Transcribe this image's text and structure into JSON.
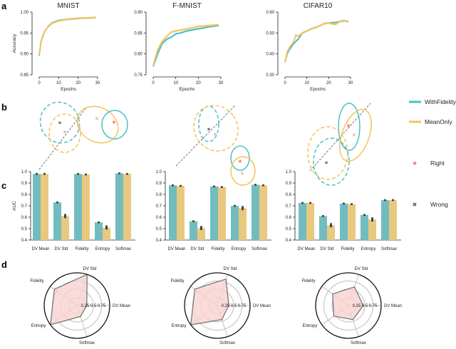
{
  "panel_labels": [
    "a",
    "b",
    "c",
    "d"
  ],
  "legend": {
    "lines": [
      {
        "name": "WithFidelity",
        "color": "#4BBFC8"
      },
      {
        "name": "MeanOnly",
        "color": "#F5C25A"
      }
    ],
    "markers": [
      {
        "name": "Right",
        "color": "#F07A6E",
        "icon": "star-icon"
      },
      {
        "name": "Wrong",
        "color": "#666666",
        "icon": "x-mark-icon"
      }
    ]
  },
  "colors": {
    "with_fidelity_bar": "#72BCC0",
    "mean_only_bar": "#E8C97F",
    "radar_fill": "#F8D3CF",
    "radar_line": "#777777"
  },
  "chart_data": [
    {
      "type": "line",
      "panel": "a",
      "title": "MNIST",
      "xlabel": "Epochs",
      "ylabel": "Accuracy",
      "xlim": [
        0,
        30
      ],
      "ylim": [
        0.85,
        1.0
      ],
      "xticks": [
        "0",
        "10",
        "20",
        "30"
      ],
      "yticks": [
        "0.85",
        "0.90",
        "0.95",
        "1.00"
      ],
      "series": [
        {
          "name": "WithFidelity",
          "x": [
            0,
            1,
            2,
            3,
            5,
            7,
            10,
            15,
            20,
            25,
            29
          ],
          "y": [
            0.896,
            0.93,
            0.945,
            0.955,
            0.968,
            0.975,
            0.98,
            0.983,
            0.985,
            0.986,
            0.987
          ]
        },
        {
          "name": "MeanOnly",
          "x": [
            0,
            1,
            2,
            3,
            5,
            7,
            10,
            15,
            20,
            25,
            29
          ],
          "y": [
            0.898,
            0.931,
            0.946,
            0.955,
            0.967,
            0.974,
            0.979,
            0.983,
            0.985,
            0.986,
            0.987
          ]
        }
      ]
    },
    {
      "type": "line",
      "panel": "a",
      "title": "F-MNIST",
      "xlabel": "Epochs",
      "ylabel": "",
      "xlim": [
        0,
        30
      ],
      "ylim": [
        0.75,
        0.9
      ],
      "xticks": [
        "0",
        "10",
        "20",
        "30"
      ],
      "yticks": [
        "0.75",
        "0.80",
        "0.85",
        "0.90"
      ],
      "series": [
        {
          "name": "WithFidelity",
          "x": [
            0,
            2,
            4,
            6,
            8,
            10,
            12,
            15,
            18,
            20,
            25,
            29
          ],
          "y": [
            0.77,
            0.8,
            0.825,
            0.835,
            0.84,
            0.848,
            0.85,
            0.855,
            0.858,
            0.86,
            0.865,
            0.868
          ]
        },
        {
          "name": "MeanOnly",
          "x": [
            0,
            2,
            4,
            6,
            8,
            10,
            12,
            15,
            18,
            20,
            25,
            29
          ],
          "y": [
            0.772,
            0.81,
            0.83,
            0.842,
            0.852,
            0.855,
            0.857,
            0.86,
            0.863,
            0.866,
            0.868,
            0.87
          ]
        }
      ]
    },
    {
      "type": "line",
      "panel": "a",
      "title": "CIFAR10",
      "xlabel": "Epochs",
      "ylabel": "",
      "xlim": [
        0,
        30
      ],
      "ylim": [
        0.3,
        0.6
      ],
      "xticks": [
        "0",
        "10",
        "20",
        "30"
      ],
      "yticks": [
        "0.30",
        "0.40",
        "0.50",
        "0.60"
      ],
      "series": [
        {
          "name": "WithFidelity",
          "x": [
            0,
            1,
            2,
            4,
            6,
            8,
            10,
            12,
            15,
            18,
            20,
            23,
            25,
            27,
            29
          ],
          "y": [
            0.36,
            0.4,
            0.42,
            0.45,
            0.47,
            0.5,
            0.51,
            0.52,
            0.53,
            0.545,
            0.548,
            0.55,
            0.555,
            0.558,
            0.555
          ]
        },
        {
          "name": "MeanOnly",
          "x": [
            0,
            1,
            2,
            4,
            5,
            6,
            8,
            10,
            12,
            15,
            18,
            20,
            23,
            25,
            27,
            29
          ],
          "y": [
            0.36,
            0.41,
            0.43,
            0.46,
            0.49,
            0.485,
            0.5,
            0.51,
            0.52,
            0.53,
            0.545,
            0.548,
            0.54,
            0.555,
            0.56,
            0.552
          ]
        }
      ]
    },
    {
      "type": "bar",
      "panel": "c",
      "ylabel": "AUC",
      "ylim": [
        0.4,
        1.0
      ],
      "yticks": [
        "0.4",
        "0.5",
        "0.6",
        "0.7",
        "0.8",
        "0.9",
        "1.0"
      ],
      "categories": [
        "DV Mean",
        "DV Std",
        "Fidelity",
        "Entropy",
        "Softmax"
      ],
      "series": [
        {
          "name": "WithFidelity",
          "values": [
            0.98,
            0.73,
            0.98,
            0.555,
            0.985
          ]
        },
        {
          "name": "MeanOnly",
          "values": [
            0.98,
            0.61,
            0.975,
            0.51,
            0.98
          ]
        }
      ]
    },
    {
      "type": "bar",
      "panel": "c",
      "ylabel": "",
      "ylim": [
        0.4,
        1.0
      ],
      "yticks": [
        "0.4",
        "0.5",
        "0.6",
        "0.7",
        "0.8",
        "0.9",
        "1.0"
      ],
      "categories": [
        "DV Mean",
        "DV Std",
        "Fidelity",
        "Entropy",
        "Softmax"
      ],
      "series": [
        {
          "name": "WithFidelity",
          "values": [
            0.88,
            0.565,
            0.87,
            0.7,
            0.885
          ]
        },
        {
          "name": "MeanOnly",
          "values": [
            0.875,
            0.505,
            0.865,
            0.68,
            0.88
          ]
        }
      ]
    },
    {
      "type": "bar",
      "panel": "c",
      "ylabel": "",
      "ylim": [
        0.4,
        1.0
      ],
      "yticks": [
        "0.4",
        "0.5",
        "0.6",
        "0.7",
        "0.8",
        "0.9",
        "1.0"
      ],
      "categories": [
        "DV Mean",
        "DV Std",
        "Fidelity",
        "Entropy",
        "Softmax"
      ],
      "series": [
        {
          "name": "WithFidelity",
          "values": [
            0.725,
            0.61,
            0.72,
            0.62,
            0.75
          ]
        },
        {
          "name": "MeanOnly",
          "values": [
            0.725,
            0.53,
            0.715,
            0.58,
            0.75
          ]
        }
      ]
    },
    {
      "type": "radar",
      "panel": "d",
      "axes": [
        "DV Mean",
        "DV Std",
        "Fidelity",
        "Entropy",
        "Softmax"
      ],
      "rings": [
        "0.25",
        "0.5",
        "0.75"
      ],
      "values": [
        0.3,
        1.0,
        0.85,
        1.0,
        0.35
      ]
    },
    {
      "type": "radar",
      "panel": "d",
      "axes": [
        "DV Mean",
        "DV Std",
        "Fidelity",
        "Entropy",
        "Softmax"
      ],
      "rings": [
        "0.25",
        "0.5",
        "0.75"
      ],
      "values": [
        0.35,
        0.85,
        0.85,
        1.0,
        0.45
      ]
    },
    {
      "type": "radar",
      "panel": "d",
      "axes": [
        "DV Mean",
        "DV Std",
        "Fidelity",
        "Entropy",
        "Softmax"
      ],
      "rings": [
        "0.25",
        "0.5",
        "0.75"
      ],
      "values": [
        0.45,
        0.6,
        0.6,
        0.55,
        0.45
      ]
    }
  ]
}
